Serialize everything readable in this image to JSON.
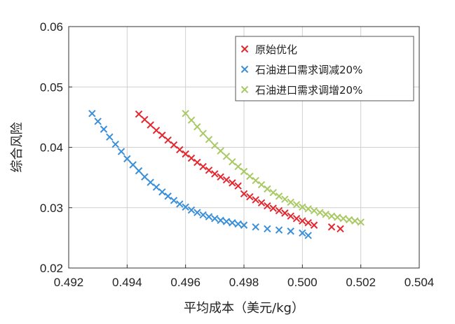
{
  "chart_data": {
    "type": "scatter",
    "xlabel": "平均成本（美元/kg）",
    "ylabel": "综合风险",
    "xlim": [
      0.492,
      0.504
    ],
    "ylim": [
      0.02,
      0.06
    ],
    "xticks": [
      0.492,
      0.494,
      0.496,
      0.498,
      0.5,
      0.502,
      0.504
    ],
    "xtick_labels": [
      "0.492",
      "0.494",
      "0.496",
      "0.498",
      "0.500",
      "0.502",
      "0.504"
    ],
    "yticks": [
      0.02,
      0.03,
      0.04,
      0.05,
      0.06
    ],
    "ytick_labels": [
      "0.02",
      "0.03",
      "0.04",
      "0.05",
      "0.06"
    ],
    "grid": true,
    "legend_position": "top-right",
    "marker": "x",
    "series": [
      {
        "name": "原始优化",
        "color": "#e3272e",
        "x": [
          0.4944,
          0.4946,
          0.4948,
          0.495,
          0.4952,
          0.4954,
          0.4956,
          0.4958,
          0.496,
          0.4962,
          0.4964,
          0.4966,
          0.4968,
          0.497,
          0.4972,
          0.4974,
          0.4976,
          0.4978,
          0.498,
          0.4982,
          0.4984,
          0.4986,
          0.4988,
          0.499,
          0.4992,
          0.4994,
          0.4996,
          0.4998,
          0.5,
          0.5002,
          0.5004,
          0.501,
          0.5013
        ],
        "y": [
          0.0455,
          0.0446,
          0.0437,
          0.0428,
          0.042,
          0.0412,
          0.0404,
          0.0396,
          0.0389,
          0.0382,
          0.0375,
          0.0368,
          0.0362,
          0.0356,
          0.0351,
          0.0346,
          0.0341,
          0.0336,
          0.0323,
          0.0318,
          0.0313,
          0.0308,
          0.0303,
          0.0299,
          0.0295,
          0.0291,
          0.0286,
          0.0282,
          0.0278,
          0.0275,
          0.0271,
          0.0268,
          0.0265
        ]
      },
      {
        "name": "石油进口需求调减20%",
        "color": "#3a8fd9",
        "x": [
          0.4928,
          0.493,
          0.4932,
          0.4934,
          0.4936,
          0.4938,
          0.494,
          0.4942,
          0.4944,
          0.4946,
          0.4948,
          0.495,
          0.4952,
          0.4954,
          0.4956,
          0.4958,
          0.496,
          0.4962,
          0.4964,
          0.4966,
          0.4968,
          0.497,
          0.4972,
          0.4974,
          0.4976,
          0.4978,
          0.498,
          0.4984,
          0.4988,
          0.4992,
          0.4996,
          0.5,
          0.5002
        ],
        "y": [
          0.0456,
          0.0443,
          0.043,
          0.0417,
          0.0405,
          0.0393,
          0.0381,
          0.0371,
          0.0361,
          0.0351,
          0.0342,
          0.0334,
          0.0326,
          0.0319,
          0.0312,
          0.0306,
          0.0301,
          0.0296,
          0.0292,
          0.0288,
          0.0285,
          0.0282,
          0.0279,
          0.0277,
          0.0275,
          0.0273,
          0.0271,
          0.0268,
          0.0265,
          0.0263,
          0.0261,
          0.0258,
          0.0254
        ]
      },
      {
        "name": "石油进口需求调增20%",
        "color": "#a9c964",
        "x": [
          0.496,
          0.4962,
          0.4964,
          0.4966,
          0.4968,
          0.497,
          0.4972,
          0.4974,
          0.4976,
          0.4978,
          0.498,
          0.4982,
          0.4984,
          0.4986,
          0.4988,
          0.499,
          0.4992,
          0.4994,
          0.4996,
          0.4998,
          0.5,
          0.5002,
          0.5004,
          0.5006,
          0.5008,
          0.501,
          0.5012,
          0.5014,
          0.5016,
          0.5018,
          0.502
        ],
        "y": [
          0.0456,
          0.0445,
          0.0434,
          0.0423,
          0.0413,
          0.0403,
          0.0394,
          0.0385,
          0.0376,
          0.0368,
          0.036,
          0.0352,
          0.0345,
          0.0338,
          0.0331,
          0.0325,
          0.0319,
          0.0314,
          0.0309,
          0.0305,
          0.0301,
          0.0298,
          0.0295,
          0.0292,
          0.0289,
          0.0286,
          0.0284,
          0.0282,
          0.028,
          0.0278,
          0.0276
        ]
      }
    ]
  }
}
